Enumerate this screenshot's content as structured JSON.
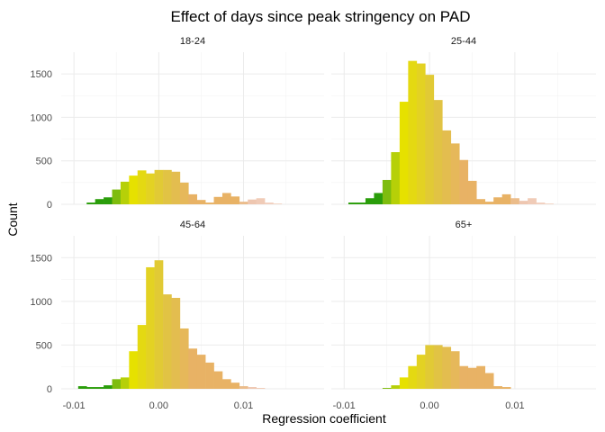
{
  "chart_data": {
    "type": "bar",
    "title": "Effect of days since peak stringency on PAD",
    "xlabel": "Regression coefficient",
    "ylabel": "Count",
    "x_ticks": [
      -0.01,
      0.0,
      0.01
    ],
    "x_tick_labels": [
      "-0.01",
      "0.00",
      "0.01"
    ],
    "y_ticks": [
      0,
      500,
      1000,
      1500
    ],
    "y_tick_labels": [
      "0",
      "500",
      "1000",
      "1500"
    ],
    "xlim": [
      -0.0115,
      0.0195
    ],
    "ylim": [
      0,
      1750
    ],
    "grid": true,
    "legend": "none",
    "bin_start": -0.0095,
    "bin_width": 0.001,
    "panels": [
      {
        "label": "18-24",
        "values": [
          0,
          20,
          60,
          80,
          170,
          260,
          330,
          390,
          355,
          395,
          395,
          375,
          250,
          115,
          50,
          20,
          85,
          130,
          90,
          30,
          55,
          70,
          20,
          10
        ]
      },
      {
        "label": "25-44",
        "values": [
          20,
          20,
          70,
          130,
          280,
          600,
          1180,
          1650,
          1620,
          1490,
          1200,
          850,
          700,
          510,
          270,
          60,
          30,
          80,
          115,
          70,
          40,
          70,
          20,
          10
        ]
      },
      {
        "label": "45-64",
        "values": [
          30,
          20,
          20,
          40,
          110,
          130,
          430,
          730,
          1390,
          1470,
          1080,
          1040,
          690,
          460,
          390,
          300,
          200,
          110,
          70,
          30,
          20,
          10,
          0,
          0
        ]
      },
      {
        "label": "65+",
        "values": [
          0,
          0,
          0,
          0,
          10,
          40,
          130,
          260,
          390,
          500,
          500,
          480,
          430,
          260,
          240,
          260,
          180,
          30,
          20,
          0,
          0,
          0,
          0,
          0
        ]
      }
    ],
    "colors": {
      "green": "#2a9d0a",
      "lime": "#8fc20f",
      "yellow": "#e6e100",
      "gold": "#e0c63e",
      "tan": "#e8b265",
      "peach": "#eec6b0",
      "pale": "#f7e0d5"
    }
  }
}
